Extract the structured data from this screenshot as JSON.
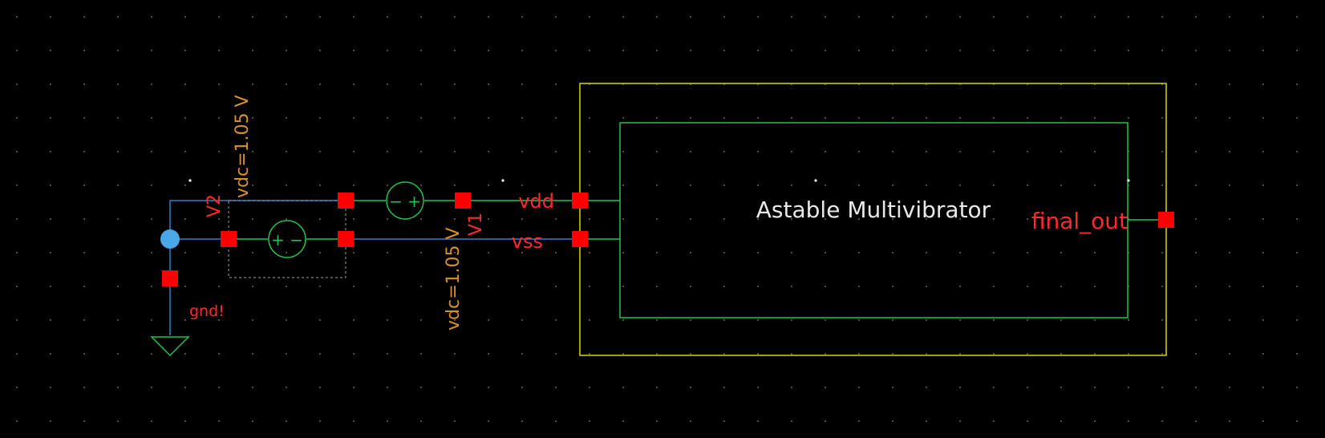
{
  "schematic": {
    "block_title": "Astable Multivibrator",
    "pins": {
      "vdd": "vdd",
      "vss": "vss",
      "final_out": "final_out"
    },
    "sources": [
      {
        "name": "V2",
        "param": "vdc=1.05 V"
      },
      {
        "name": "V1",
        "param": "vdc=1.05 V"
      }
    ],
    "ground_label": "gnd!",
    "source_symbols": {
      "v2": "+ −",
      "v1": "− +"
    }
  },
  "colors": {
    "background": "#000000",
    "grid_dot": "#5a5a5a",
    "wire_blue": "#2f7fd0",
    "wire_green": "#22c24a",
    "pin_red": "#ff0000",
    "label_red": "#ff2a2a",
    "param_orange": "#d8902a",
    "instance_yellow": "#d8d800",
    "symbol_green": "#22c24a",
    "junction_cyan": "#4aa8e8",
    "block_text": "#e8e8e8"
  }
}
